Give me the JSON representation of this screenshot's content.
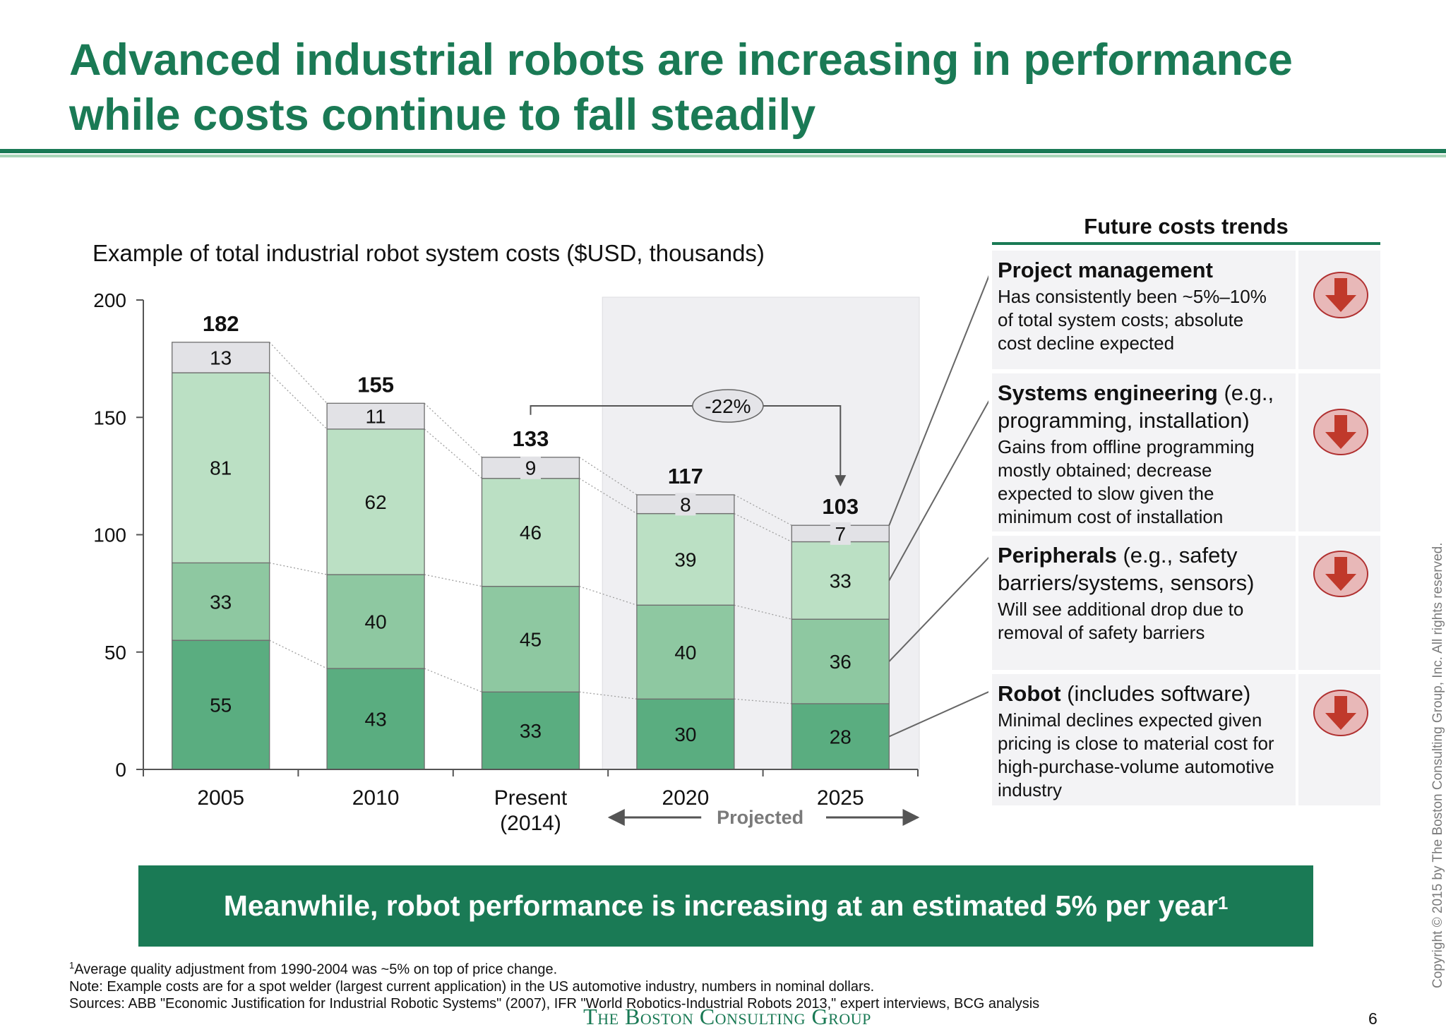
{
  "title": {
    "line1": "Advanced industrial robots are increasing in performance",
    "line2": "while costs continue to fall steadily"
  },
  "chart_data": {
    "type": "bar",
    "stacked": true,
    "subtitle": "Example of total industrial robot system costs ($USD, thousands)",
    "categories": [
      "2005",
      "2010",
      "Present (2014)",
      "2020",
      "2025"
    ],
    "category_label_lines": [
      [
        "2005"
      ],
      [
        "2010"
      ],
      [
        "Present",
        "(2014)"
      ],
      [
        "2020"
      ],
      [
        "2025"
      ]
    ],
    "series": [
      {
        "name": "Robot",
        "values": [
          55,
          43,
          33,
          30,
          28
        ],
        "color": "#5aad80"
      },
      {
        "name": "Peripherals",
        "values": [
          33,
          40,
          45,
          40,
          36
        ],
        "color": "#8ec8a1"
      },
      {
        "name": "Systems engineering",
        "values": [
          81,
          62,
          46,
          39,
          33
        ],
        "color": "#bbe0c4"
      },
      {
        "name": "Project management",
        "values": [
          13,
          11,
          9,
          8,
          7
        ],
        "color": "#e2e2e6"
      }
    ],
    "totals": [
      182,
      155,
      133,
      117,
      103
    ],
    "y_ticks": [
      0,
      50,
      100,
      150,
      200
    ],
    "ylim": [
      0,
      200
    ],
    "projected_label": "Projected",
    "projected_from_index": 3,
    "change_annotation": {
      "label": "-22%",
      "from_index": 2,
      "to_index": 4
    },
    "grid": false,
    "legend": "right"
  },
  "trends": {
    "title": "Future costs trends",
    "items": [
      {
        "heading": "Project management",
        "heading_extra": "",
        "body": [
          "Has consistently been ~5%–10%",
          "of total system costs; absolute",
          "cost decline expected"
        ],
        "trend": "decrease"
      },
      {
        "heading": "Systems engineering",
        "heading_extra": " (e.g., programming, installation)",
        "body": [
          "Gains from offline programming",
          "mostly obtained; decrease",
          "expected to slow given the",
          "minimum cost of installation"
        ],
        "trend": "decrease"
      },
      {
        "heading": "Peripherals",
        "heading_extra": " (e.g., safety barriers/systems, sensors)",
        "body": [
          "Will see additional drop due to",
          "removal of safety barriers"
        ],
        "trend": "decrease"
      },
      {
        "heading": "Robot",
        "heading_extra": " (includes software)",
        "body": [
          "Minimal declines expected given",
          "pricing is close to material cost for",
          "high-purchase-volume automotive",
          "industry"
        ],
        "trend": "decrease"
      }
    ],
    "icon": "down-arrow-icon",
    "icon_fill": "#e8b8b8",
    "icon_arrow": "#c0392b"
  },
  "banner": {
    "text": "Meanwhile, robot performance is increasing at an estimated 5% per year",
    "footnote_ref": "1"
  },
  "footnotes": {
    "note1_ref": "1",
    "note1": "Average quality adjustment from 1990-2004 was ~5% on top of price change.",
    "note2": "Note: Example costs are for a spot welder (largest current application) in the US automotive industry, numbers in nominal dollars.",
    "sources": "Sources: ABB \"Economic Justification for Industrial Robotic Systems\" (2007), IFR \"World Robotics-Industrial Robots 2013,\" expert interviews, BCG analysis"
  },
  "logo_text": "The Boston Consulting Group",
  "page_number": "6",
  "copyright": "Copyright © 2015 by The Boston Consulting Group, Inc. All rights reserved.",
  "colors": {
    "brand_green": "#1a7a55",
    "light_green_rule": "#a8d5b8",
    "projected_shade": "#efeff2"
  }
}
